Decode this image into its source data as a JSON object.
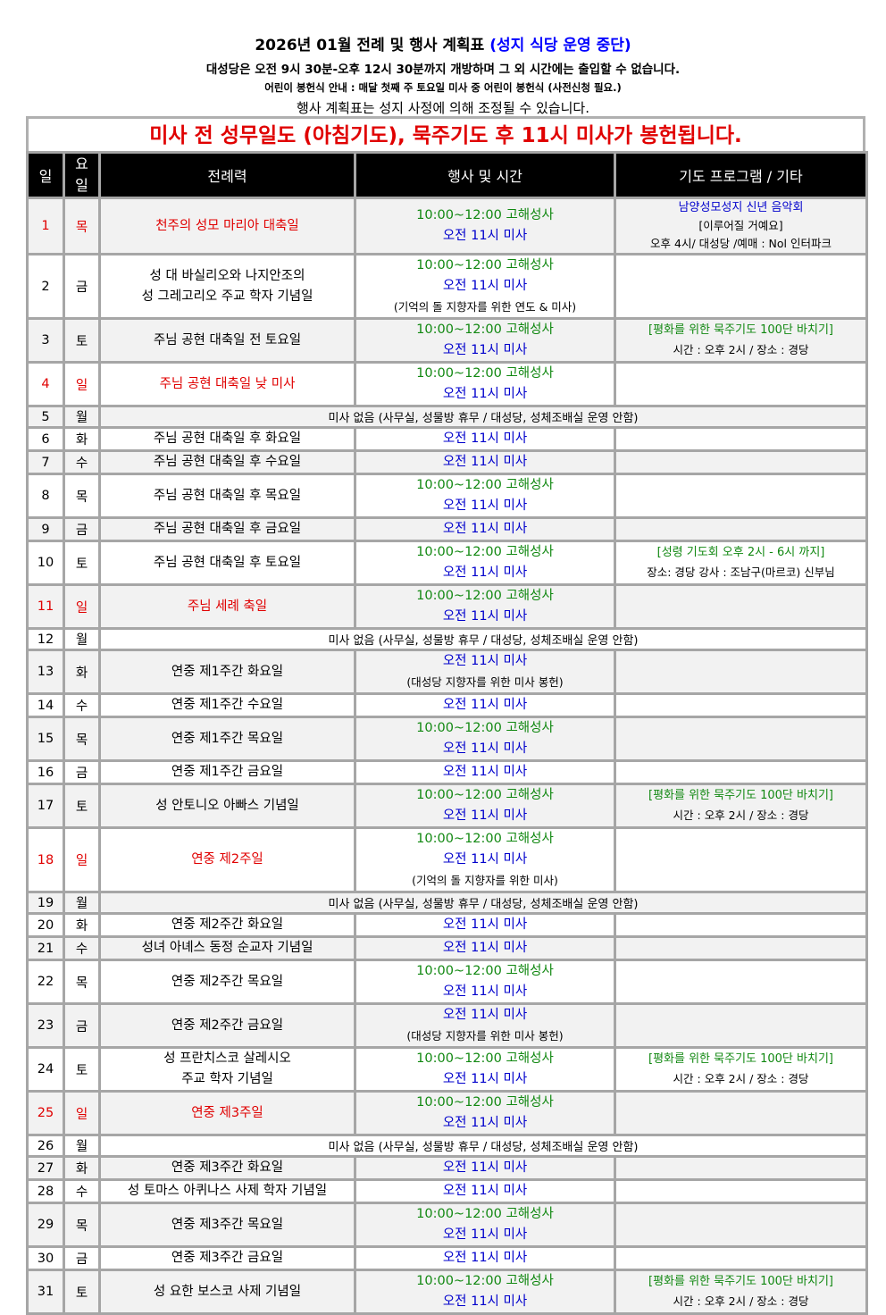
{
  "header": {
    "title": "2026년 01월 전례 및 행사 계획표",
    "title_note": "(성지 식당 운영 중단)",
    "open_hours": "대성당은 오전 9시 30분-오후 12시 30분까지 개방하며 그 외 시간에는 출입할 수 없습니다.",
    "children_notice": "어린이 봉헌식 안내 : 매달 첫째 주 토요일 미사 중 어린이 봉헌식 (사전신청 필요.)",
    "adjust_notice": "행사 계획표는 성지 사정에 의해 조정될 수 있습니다.",
    "banner": "미사 전 성무일도 (아침기도), 묵주기도 후 11시 미사가 봉헌됩니다."
  },
  "colors": {
    "red": "#e00000",
    "confession": "#118811",
    "mass": "#0000cc",
    "title_blue": "#0000ff",
    "header_bg": "#000000",
    "odd_row": "#f2f2f2"
  },
  "columns": {
    "day": "일",
    "weekday_1": "요",
    "weekday_2": "일",
    "liturgy": "전례력",
    "events": "행사 및 시간",
    "program": "기도 프로그램 / 기타"
  },
  "rows": [
    {
      "day": "1",
      "weekday": "목",
      "red": true,
      "liturgy": [
        "천주의 성모 마리아 대축일"
      ],
      "events": [
        {
          "t": "confess",
          "text": "10:00~12:00 고해성사"
        },
        {
          "t": "mass",
          "text": "오전 11시 미사"
        }
      ],
      "program": [
        {
          "t": "ptitle",
          "text": "남양성모성지 신년 음악회"
        },
        {
          "t": "pblack",
          "text": "[이루어질 거예요]"
        },
        {
          "t": "pblack",
          "text": "오후 4시/ 대성당 /예매 : Nol 인터파크"
        }
      ]
    },
    {
      "day": "2",
      "weekday": "금",
      "liturgy": [
        "성 대 바실리오와 나지안조의",
        "성 그레고리오 주교 학자 기념일"
      ],
      "events": [
        {
          "t": "confess",
          "text": "10:00~12:00 고해성사"
        },
        {
          "t": "mass",
          "text": "오전 11시 미사"
        },
        {
          "t": "note",
          "text": "(기억의 돌 지향자를 위한 연도 & 미사)"
        }
      ],
      "program": []
    },
    {
      "day": "3",
      "weekday": "토",
      "liturgy": [
        "주님 공현 대축일 전 토요일"
      ],
      "events": [
        {
          "t": "confess",
          "text": "10:00~12:00 고해성사"
        },
        {
          "t": "mass",
          "text": "오전 11시 미사"
        }
      ],
      "program": [
        {
          "t": "pgreen",
          "text": "[평화를 위한 묵주기도 100단 바치기]"
        },
        {
          "t": "pblack",
          "text": "시간 : 오후 2시 / 장소 : 경당"
        }
      ]
    },
    {
      "day": "4",
      "weekday": "일",
      "red": true,
      "liturgy": [
        "주님 공현 대축일 낮 미사"
      ],
      "events": [
        {
          "t": "confess",
          "text": "10:00~12:00 고해성사"
        },
        {
          "t": "mass",
          "text": "오전 11시 미사"
        }
      ],
      "program": []
    },
    {
      "day": "5",
      "weekday": "월",
      "no_mass": "미사 없음 (사무실, 성물방 휴무 / 대성당, 성체조배실 운영 안함)"
    },
    {
      "day": "6",
      "weekday": "화",
      "liturgy": [
        "주님 공현 대축일 후 화요일"
      ],
      "events": [
        {
          "t": "mass",
          "text": "오전 11시 미사"
        }
      ],
      "program": []
    },
    {
      "day": "7",
      "weekday": "수",
      "liturgy": [
        "주님 공현 대축일 후 수요일"
      ],
      "events": [
        {
          "t": "mass",
          "text": "오전 11시 미사"
        }
      ],
      "program": []
    },
    {
      "day": "8",
      "weekday": "목",
      "liturgy": [
        "주님 공현 대축일 후 목요일"
      ],
      "events": [
        {
          "t": "confess",
          "text": "10:00~12:00 고해성사"
        },
        {
          "t": "mass",
          "text": "오전 11시 미사"
        }
      ],
      "program": []
    },
    {
      "day": "9",
      "weekday": "금",
      "liturgy": [
        "주님 공현 대축일 후 금요일"
      ],
      "events": [
        {
          "t": "mass",
          "text": "오전 11시 미사"
        }
      ],
      "program": []
    },
    {
      "day": "10",
      "weekday": "토",
      "liturgy": [
        "주님 공현 대축일 후 토요일"
      ],
      "events": [
        {
          "t": "confess",
          "text": "10:00~12:00 고해성사"
        },
        {
          "t": "mass",
          "text": "오전 11시 미사"
        }
      ],
      "program": [
        {
          "t": "pgreen",
          "text": "[성령 기도회 오후 2시 - 6시 까지]"
        },
        {
          "t": "pblack",
          "text": "장소: 경당 강사 : 조남구(마르코) 신부님"
        }
      ]
    },
    {
      "day": "11",
      "weekday": "일",
      "red": true,
      "liturgy": [
        "주님 세례 축일"
      ],
      "events": [
        {
          "t": "confess",
          "text": "10:00~12:00 고해성사"
        },
        {
          "t": "mass",
          "text": "오전 11시 미사"
        }
      ],
      "program": []
    },
    {
      "day": "12",
      "weekday": "월",
      "no_mass": "미사 없음 (사무실, 성물방 휴무 / 대성당, 성체조배실 운영 안함)"
    },
    {
      "day": "13",
      "weekday": "화",
      "liturgy": [
        "연중 제1주간 화요일"
      ],
      "events": [
        {
          "t": "mass",
          "text": "오전 11시 미사"
        },
        {
          "t": "note",
          "text": "(대성당 지향자를 위한 미사 봉헌)"
        }
      ],
      "program": []
    },
    {
      "day": "14",
      "weekday": "수",
      "liturgy": [
        "연중 제1주간 수요일"
      ],
      "events": [
        {
          "t": "mass",
          "text": "오전 11시 미사"
        }
      ],
      "program": []
    },
    {
      "day": "15",
      "weekday": "목",
      "liturgy": [
        "연중 제1주간 목요일"
      ],
      "events": [
        {
          "t": "confess",
          "text": "10:00~12:00 고해성사"
        },
        {
          "t": "mass",
          "text": "오전 11시 미사"
        }
      ],
      "program": []
    },
    {
      "day": "16",
      "weekday": "금",
      "liturgy": [
        "연중 제1주간 금요일"
      ],
      "events": [
        {
          "t": "mass",
          "text": "오전 11시 미사"
        }
      ],
      "program": []
    },
    {
      "day": "17",
      "weekday": "토",
      "liturgy": [
        "성 안토니오 아빠스 기념일"
      ],
      "events": [
        {
          "t": "confess",
          "text": "10:00~12:00 고해성사"
        },
        {
          "t": "mass",
          "text": "오전 11시 미사"
        }
      ],
      "program": [
        {
          "t": "pgreen",
          "text": "[평화를 위한 묵주기도 100단 바치기]"
        },
        {
          "t": "pblack",
          "text": "시간 : 오후 2시 / 장소 : 경당"
        }
      ]
    },
    {
      "day": "18",
      "weekday": "일",
      "red": true,
      "liturgy": [
        "연중 제2주일"
      ],
      "events": [
        {
          "t": "confess",
          "text": "10:00~12:00 고해성사"
        },
        {
          "t": "mass",
          "text": "오전 11시 미사"
        },
        {
          "t": "note",
          "text": "(기억의 돌 지향자를 위한 미사)"
        }
      ],
      "program": []
    },
    {
      "day": "19",
      "weekday": "월",
      "no_mass": "미사 없음 (사무실, 성물방 휴무 / 대성당, 성체조배실 운영 안함)"
    },
    {
      "day": "20",
      "weekday": "화",
      "liturgy": [
        "연중 제2주간 화요일"
      ],
      "events": [
        {
          "t": "mass",
          "text": "오전 11시 미사"
        }
      ],
      "program": []
    },
    {
      "day": "21",
      "weekday": "수",
      "liturgy": [
        "성녀 아녜스 동정 순교자 기념일"
      ],
      "events": [
        {
          "t": "mass",
          "text": "오전 11시 미사"
        }
      ],
      "program": []
    },
    {
      "day": "22",
      "weekday": "목",
      "liturgy": [
        "연중 제2주간 목요일"
      ],
      "events": [
        {
          "t": "confess",
          "text": "10:00~12:00 고해성사"
        },
        {
          "t": "mass",
          "text": "오전 11시 미사"
        }
      ],
      "program": []
    },
    {
      "day": "23",
      "weekday": "금",
      "liturgy": [
        "연중 제2주간 금요일"
      ],
      "events": [
        {
          "t": "mass",
          "text": "오전 11시 미사"
        },
        {
          "t": "note",
          "text": "(대성당 지향자를 위한 미사 봉헌)"
        }
      ],
      "program": []
    },
    {
      "day": "24",
      "weekday": "토",
      "liturgy": [
        "성 프란치스코 살레시오",
        "주교 학자 기념일"
      ],
      "events": [
        {
          "t": "confess",
          "text": "10:00~12:00 고해성사"
        },
        {
          "t": "mass",
          "text": "오전 11시 미사"
        }
      ],
      "program": [
        {
          "t": "pgreen",
          "text": "[평화를 위한 묵주기도 100단 바치기]"
        },
        {
          "t": "pblack",
          "text": "시간 : 오후 2시 / 장소 : 경당"
        }
      ]
    },
    {
      "day": "25",
      "weekday": "일",
      "red": true,
      "liturgy": [
        "연중 제3주일"
      ],
      "events": [
        {
          "t": "confess",
          "text": "10:00~12:00 고해성사"
        },
        {
          "t": "mass",
          "text": "오전 11시 미사"
        }
      ],
      "program": []
    },
    {
      "day": "26",
      "weekday": "월",
      "no_mass": "미사 없음 (사무실, 성물방 휴무 / 대성당, 성체조배실 운영 안함)"
    },
    {
      "day": "27",
      "weekday": "화",
      "liturgy": [
        "연중 제3주간 화요일"
      ],
      "events": [
        {
          "t": "mass",
          "text": "오전 11시 미사"
        }
      ],
      "program": []
    },
    {
      "day": "28",
      "weekday": "수",
      "liturgy": [
        "성 토마스 아퀴나스 사제 학자 기념일"
      ],
      "events": [
        {
          "t": "mass",
          "text": "오전 11시 미사"
        }
      ],
      "program": []
    },
    {
      "day": "29",
      "weekday": "목",
      "liturgy": [
        "연중 제3주간 목요일"
      ],
      "events": [
        {
          "t": "confess",
          "text": "10:00~12:00 고해성사"
        },
        {
          "t": "mass",
          "text": "오전 11시 미사"
        }
      ],
      "program": []
    },
    {
      "day": "30",
      "weekday": "금",
      "liturgy": [
        "연중 제3주간 금요일"
      ],
      "events": [
        {
          "t": "mass",
          "text": "오전 11시 미사"
        }
      ],
      "program": []
    },
    {
      "day": "31",
      "weekday": "토",
      "liturgy": [
        "성 요한 보스코 사제 기념일"
      ],
      "events": [
        {
          "t": "confess",
          "text": "10:00~12:00 고해성사"
        },
        {
          "t": "mass",
          "text": "오전 11시 미사"
        }
      ],
      "program": [
        {
          "t": "pgreen",
          "text": "[평화를 위한 묵주기도 100단 바치기]"
        },
        {
          "t": "pblack",
          "text": "시간 : 오후 2시 / 장소 : 경당"
        }
      ]
    }
  ]
}
